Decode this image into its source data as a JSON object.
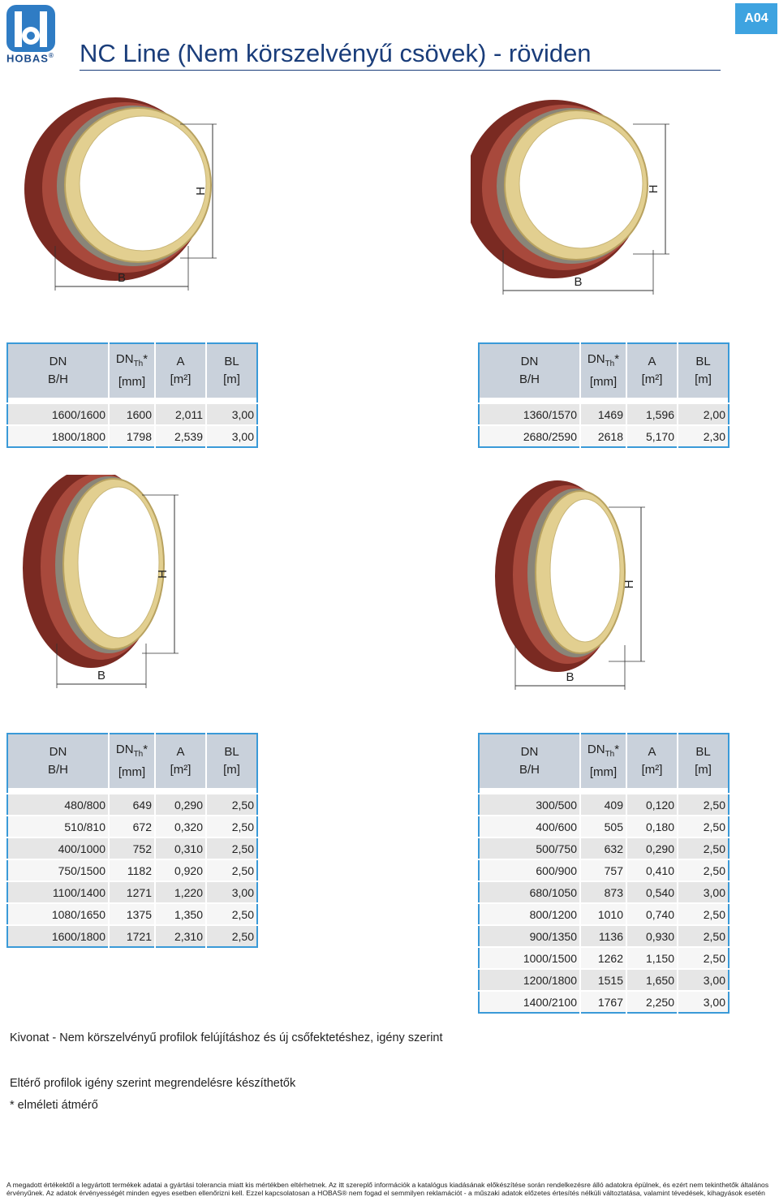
{
  "header": {
    "logo": "HOBAS",
    "logo_mark": "®",
    "title": "NC Line (Nem körszelvényű csövek) - röviden",
    "badge": "A04"
  },
  "figures": [
    {
      "b_label": "B",
      "h_label": "H"
    },
    {
      "b_label": "B",
      "h_label": "H"
    },
    {
      "b_label": "B",
      "h_label": "H"
    },
    {
      "b_label": "B",
      "h_label": "H"
    }
  ],
  "columns": [
    {
      "top": "DN",
      "bottom": "B/H"
    },
    {
      "top": "DN",
      "sub": "Th",
      "sup": "*",
      "bottom": "[mm]"
    },
    {
      "top": "A",
      "bottom": "[m²]"
    },
    {
      "top": "BL",
      "bottom": "[m]"
    }
  ],
  "tables": [
    {
      "rows": [
        [
          "1600/1600",
          "1600",
          "2,011",
          "3,00"
        ],
        [
          "1800/1800",
          "1798",
          "2,539",
          "3,00"
        ]
      ]
    },
    {
      "rows": [
        [
          "1360/1570",
          "1469",
          "1,596",
          "2,00"
        ],
        [
          "2680/2590",
          "2618",
          "5,170",
          "2,30"
        ]
      ]
    },
    {
      "rows": [
        [
          "480/800",
          "649",
          "0,290",
          "2,50"
        ],
        [
          "510/810",
          "672",
          "0,320",
          "2,50"
        ],
        [
          "400/1000",
          "752",
          "0,310",
          "2,50"
        ],
        [
          "750/1500",
          "1182",
          "0,920",
          "2,50"
        ],
        [
          "1100/1400",
          "1271",
          "1,220",
          "3,00"
        ],
        [
          "1080/1650",
          "1375",
          "1,350",
          "2,50"
        ],
        [
          "1600/1800",
          "1721",
          "2,310",
          "2,50"
        ]
      ]
    },
    {
      "rows": [
        [
          "300/500",
          "409",
          "0,120",
          "2,50"
        ],
        [
          "400/600",
          "505",
          "0,180",
          "2,50"
        ],
        [
          "500/750",
          "632",
          "0,290",
          "2,50"
        ],
        [
          "600/900",
          "757",
          "0,410",
          "2,50"
        ],
        [
          "680/1050",
          "873",
          "0,540",
          "3,00"
        ],
        [
          "800/1200",
          "1010",
          "0,740",
          "2,50"
        ],
        [
          "900/1350",
          "1136",
          "0,930",
          "2,50"
        ],
        [
          "1000/1500",
          "1262",
          "1,150",
          "2,50"
        ],
        [
          "1200/1800",
          "1515",
          "1,650",
          "3,00"
        ],
        [
          "1400/2100",
          "1767",
          "2,250",
          "3,00"
        ]
      ]
    }
  ],
  "notes": [
    "Kivonat - Nem körszelvényű profilok felújításhoz és új csőfektetéshez, igény szerint",
    "Eltérő profilok igény szerint megrendelésre készíthetők",
    "* elméleti átmérő"
  ],
  "footer": "A megadott értékektől a legyártott termékek adatai a gyártási tolerancia miatt kis mértékben eltérhetnek. Az itt szereplő információk a katalógus kiadásának előkészítése során rendelkezésre álló adatokra épülnek, és ezért nem tekinthetők általános érvényűnek. Az adatok érvényességét minden egyes esetben ellenőrizni kell. Ezzel kapcsolatosan a HOBAS® nem fogad el semmilyen reklamációt - a műszaki adatok előzetes értesítés nélküli változtatása, valamint tévedések, kihagyások esetén sem."
}
